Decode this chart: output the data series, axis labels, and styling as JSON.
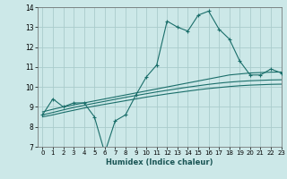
{
  "xlabel": "Humidex (Indice chaleur)",
  "bg_color": "#cce8e8",
  "grid_color": "#aacccc",
  "line_color": "#1a6e6a",
  "x_data": [
    0,
    1,
    2,
    3,
    4,
    5,
    6,
    7,
    8,
    9,
    10,
    11,
    12,
    13,
    14,
    15,
    16,
    17,
    18,
    19,
    20,
    21,
    22,
    23
  ],
  "y_main": [
    8.6,
    9.4,
    9.0,
    9.2,
    9.2,
    8.5,
    6.7,
    8.3,
    8.6,
    9.6,
    10.5,
    11.1,
    13.3,
    13.0,
    12.8,
    13.6,
    13.8,
    12.9,
    12.4,
    11.3,
    10.6,
    10.6,
    10.9,
    10.7
  ],
  "y_line1": [
    8.75,
    8.88,
    9.0,
    9.1,
    9.2,
    9.3,
    9.4,
    9.5,
    9.6,
    9.7,
    9.8,
    9.9,
    10.0,
    10.1,
    10.2,
    10.3,
    10.4,
    10.5,
    10.6,
    10.65,
    10.7,
    10.72,
    10.74,
    10.75
  ],
  "y_line2": [
    8.6,
    8.72,
    8.85,
    8.97,
    9.08,
    9.18,
    9.28,
    9.38,
    9.48,
    9.57,
    9.66,
    9.75,
    9.83,
    9.91,
    9.99,
    10.06,
    10.13,
    10.19,
    10.24,
    10.28,
    10.31,
    10.33,
    10.35,
    10.36
  ],
  "y_line3": [
    8.5,
    8.6,
    8.72,
    8.83,
    8.94,
    9.04,
    9.13,
    9.22,
    9.31,
    9.4,
    9.49,
    9.57,
    9.65,
    9.72,
    9.79,
    9.86,
    9.92,
    9.97,
    10.02,
    10.06,
    10.09,
    10.11,
    10.13,
    10.14
  ],
  "ylim": [
    7,
    14
  ],
  "xlim": [
    -0.5,
    23
  ],
  "yticks": [
    7,
    8,
    9,
    10,
    11,
    12,
    13,
    14
  ],
  "xticks": [
    0,
    1,
    2,
    3,
    4,
    5,
    6,
    7,
    8,
    9,
    10,
    11,
    12,
    13,
    14,
    15,
    16,
    17,
    18,
    19,
    20,
    21,
    22,
    23
  ]
}
